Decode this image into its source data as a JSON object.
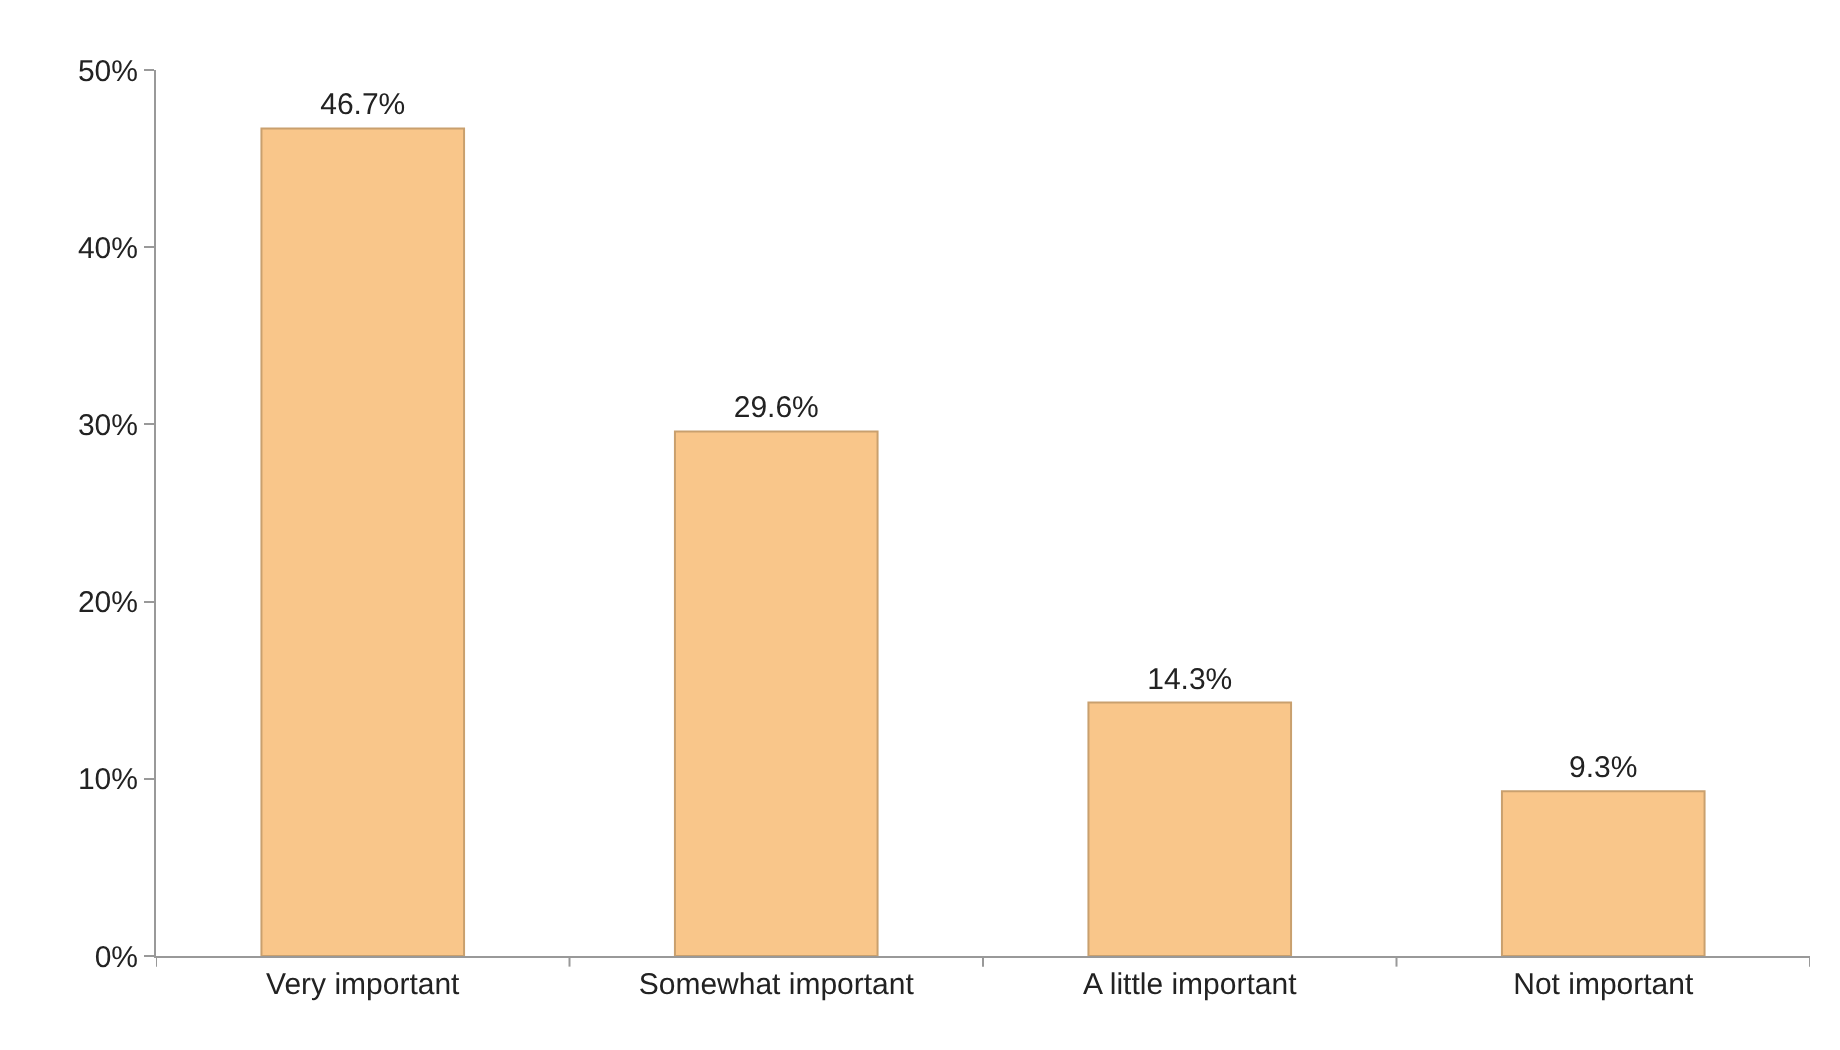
{
  "chart_data": {
    "type": "bar",
    "categories": [
      "Very important",
      "Somewhat important",
      "A little important",
      "Not important"
    ],
    "values": [
      46.7,
      29.6,
      14.3,
      9.3
    ],
    "value_labels": [
      "46.7%",
      "29.6%",
      "14.3%",
      "9.3%"
    ],
    "color": "#f9c68a",
    "ylim": [
      0,
      50
    ],
    "yticks": [
      {
        "value": 0,
        "label": "0%"
      },
      {
        "value": 10,
        "label": "10%"
      },
      {
        "value": 20,
        "label": "20%"
      },
      {
        "value": 30,
        "label": "30%"
      },
      {
        "value": 40,
        "label": "40%"
      },
      {
        "value": 50,
        "label": "50%"
      }
    ]
  }
}
